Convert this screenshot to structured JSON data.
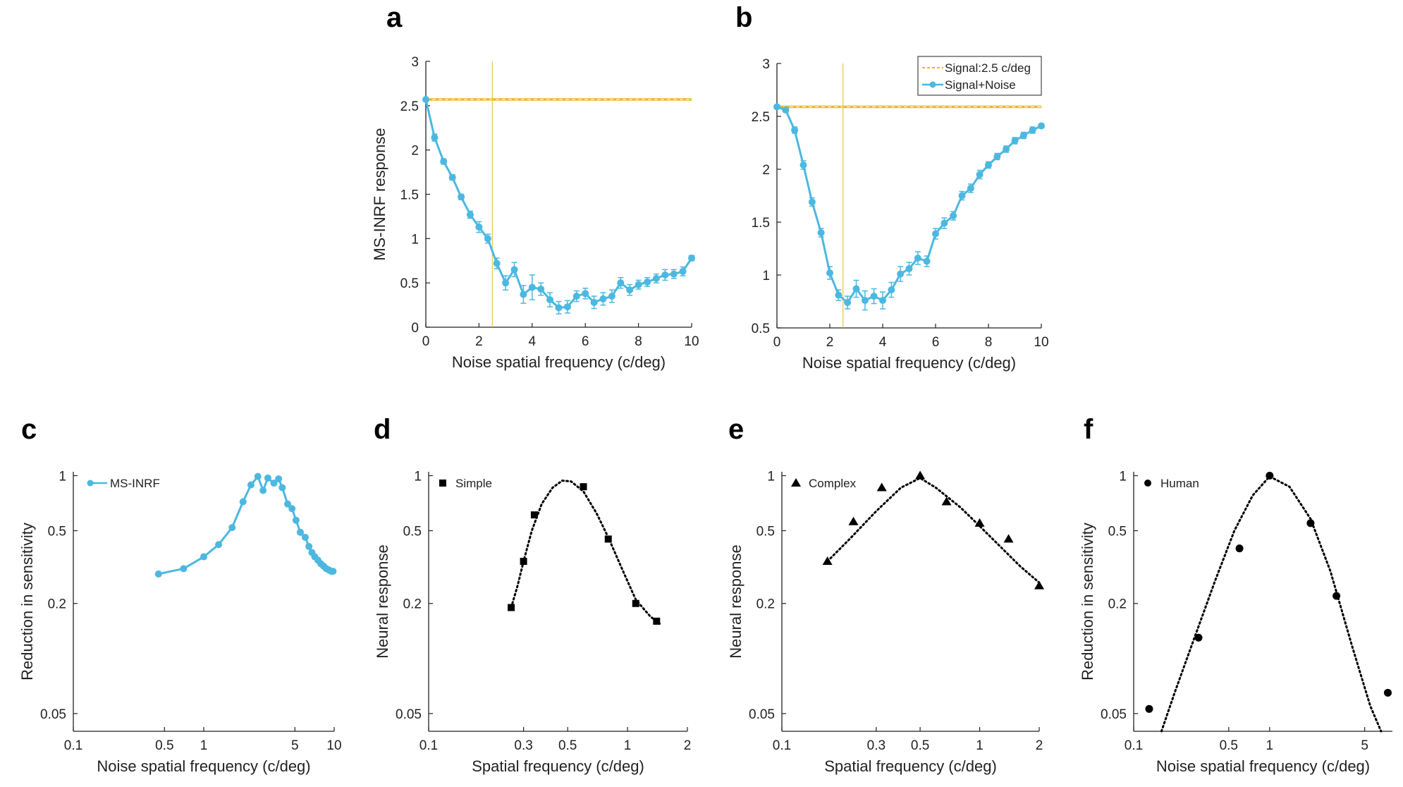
{
  "figure": {
    "panels": [
      "a",
      "b",
      "c",
      "d",
      "e",
      "f"
    ]
  },
  "colors": {
    "model": "#4cb8e0",
    "signal": "#e8b923",
    "marker": "#000000",
    "axis": "#222222"
  },
  "chart_data": [
    {
      "panel": "a",
      "type": "line",
      "xlabel": "Noise spatial frequency (c/deg)",
      "ylabel": "MS-INRF response",
      "xlim": [
        0,
        10
      ],
      "ylim": [
        0,
        3
      ],
      "xticks": [
        0,
        2,
        4,
        6,
        8,
        10
      ],
      "xtick_labels": [
        "0",
        "2",
        "4",
        "6",
        "8",
        "10"
      ],
      "yticks": [
        0,
        0.5,
        1,
        1.5,
        2,
        2.5,
        3
      ],
      "ytick_labels": [
        "0",
        "0.5",
        "1",
        "1.5",
        "2",
        "2.5",
        "3"
      ],
      "signal_level": 2.57,
      "signal_frequency": 2.5,
      "series": [
        {
          "name": "Signal+Noise",
          "x": [
            0,
            0.33,
            0.67,
            1.0,
            1.33,
            1.67,
            2.0,
            2.33,
            2.67,
            3.0,
            3.33,
            3.67,
            4.0,
            4.33,
            4.67,
            5.0,
            5.33,
            5.67,
            6.0,
            6.33,
            6.67,
            7.0,
            7.33,
            7.67,
            8.0,
            8.33,
            8.67,
            9.0,
            9.33,
            9.67,
            10.0
          ],
          "values": [
            2.57,
            2.14,
            1.87,
            1.69,
            1.47,
            1.27,
            1.13,
            1.0,
            0.72,
            0.5,
            0.65,
            0.37,
            0.45,
            0.43,
            0.31,
            0.22,
            0.23,
            0.35,
            0.38,
            0.28,
            0.32,
            0.35,
            0.5,
            0.42,
            0.48,
            0.51,
            0.55,
            0.59,
            0.6,
            0.63,
            0.78
          ],
          "errors": [
            0,
            0.04,
            0.03,
            0.03,
            0.03,
            0.04,
            0.06,
            0.05,
            0.06,
            0.08,
            0.08,
            0.1,
            0.14,
            0.07,
            0.08,
            0.07,
            0.07,
            0.06,
            0.06,
            0.07,
            0.07,
            0.07,
            0.06,
            0.06,
            0.05,
            0.05,
            0.05,
            0.06,
            0.05,
            0.05,
            0.03
          ]
        }
      ]
    },
    {
      "panel": "b",
      "type": "line",
      "xlabel": "Noise spatial frequency (c/deg)",
      "ylabel": "",
      "xlim": [
        0,
        10
      ],
      "ylim": [
        0.5,
        3
      ],
      "xticks": [
        0,
        2,
        4,
        6,
        8,
        10
      ],
      "xtick_labels": [
        "0",
        "2",
        "4",
        "6",
        "8",
        "10"
      ],
      "yticks": [
        0.5,
        1,
        1.5,
        2,
        2.5,
        3
      ],
      "ytick_labels": [
        "0.5",
        "1",
        "1.5",
        "2",
        "2.5",
        "3"
      ],
      "signal_level": 2.59,
      "signal_frequency": 2.5,
      "legend": [
        "Signal:2.5 c/deg",
        "Signal+Noise"
      ],
      "series": [
        {
          "name": "Signal+Noise",
          "x": [
            0,
            0.33,
            0.67,
            1.0,
            1.33,
            1.67,
            2.0,
            2.33,
            2.67,
            3.0,
            3.33,
            3.67,
            4.0,
            4.33,
            4.67,
            5.0,
            5.33,
            5.67,
            6.0,
            6.33,
            6.67,
            7.0,
            7.33,
            7.67,
            8.0,
            8.33,
            8.67,
            9.0,
            9.33,
            9.67,
            10.0
          ],
          "values": [
            2.59,
            2.56,
            2.37,
            2.04,
            1.69,
            1.4,
            1.02,
            0.81,
            0.74,
            0.87,
            0.76,
            0.8,
            0.76,
            0.86,
            1.01,
            1.06,
            1.16,
            1.13,
            1.39,
            1.49,
            1.56,
            1.75,
            1.82,
            1.95,
            2.04,
            2.12,
            2.19,
            2.27,
            2.32,
            2.37,
            2.41
          ],
          "errors": [
            0,
            0.02,
            0.03,
            0.04,
            0.04,
            0.04,
            0.06,
            0.05,
            0.06,
            0.08,
            0.09,
            0.07,
            0.08,
            0.07,
            0.07,
            0.06,
            0.06,
            0.05,
            0.05,
            0.05,
            0.04,
            0.04,
            0.04,
            0.04,
            0.03,
            0.03,
            0.03,
            0.03,
            0.03,
            0.03,
            0.02
          ]
        }
      ]
    },
    {
      "panel": "c",
      "type": "line",
      "xscale": "log",
      "yscale": "log",
      "xlabel": "Noise spatial frequency (c/deg)",
      "ylabel": "Reduction in sensitivity",
      "xlim": [
        0.1,
        10
      ],
      "ylim": [
        0.04,
        1.05
      ],
      "xticks": [
        0.1,
        0.5,
        1,
        5,
        10
      ],
      "xtick_labels": [
        "0.1",
        "0.5",
        "1",
        "5",
        "10"
      ],
      "yticks": [
        0.05,
        0.2,
        0.5,
        1
      ],
      "ytick_labels": [
        "0.05",
        "0.2",
        "0.5",
        "1"
      ],
      "legend": [
        "MS-INRF"
      ],
      "series": [
        {
          "name": "MS-INRF",
          "x": [
            0.45,
            0.7,
            1.0,
            1.3,
            1.65,
            2.0,
            2.3,
            2.6,
            2.85,
            3.1,
            3.45,
            3.75,
            4.0,
            4.4,
            4.75,
            5.1,
            5.5,
            6.0,
            6.4,
            6.75,
            7.1,
            7.5,
            7.9,
            8.3,
            8.7,
            9.1,
            9.5,
            9.8
          ],
          "values": [
            0.29,
            0.31,
            0.36,
            0.42,
            0.52,
            0.72,
            0.89,
            0.99,
            0.83,
            0.97,
            0.91,
            0.96,
            0.86,
            0.7,
            0.66,
            0.57,
            0.49,
            0.46,
            0.41,
            0.38,
            0.36,
            0.345,
            0.33,
            0.32,
            0.31,
            0.305,
            0.3,
            0.3
          ]
        }
      ]
    },
    {
      "panel": "d",
      "type": "scatter",
      "xscale": "log",
      "yscale": "log",
      "xlabel": "Spatial frequency (c/deg)",
      "ylabel": "Neural response",
      "xlim": [
        0.1,
        2
      ],
      "ylim": [
        0.04,
        1.05
      ],
      "xticks": [
        0.1,
        0.3,
        0.5,
        1,
        2
      ],
      "xtick_labels": [
        "0.1",
        "0.3",
        "0.5",
        "1",
        "2"
      ],
      "yticks": [
        0.05,
        0.2,
        0.5,
        1
      ],
      "ytick_labels": [
        "0.05",
        "0.2",
        "0.5",
        "1"
      ],
      "legend": [
        "Simple"
      ],
      "series": [
        {
          "name": "Simple",
          "marker": "square",
          "x": [
            0.26,
            0.3,
            0.34,
            0.6,
            0.8,
            1.1,
            1.4
          ],
          "values": [
            0.19,
            0.34,
            0.61,
            0.87,
            0.45,
            0.2,
            0.16
          ]
        }
      ],
      "fit": {
        "x": [
          0.26,
          0.28,
          0.3,
          0.33,
          0.37,
          0.42,
          0.47,
          0.52,
          0.6,
          0.7,
          0.8,
          0.95,
          1.1,
          1.3,
          1.45
        ],
        "values": [
          0.19,
          0.25,
          0.34,
          0.5,
          0.7,
          0.86,
          0.94,
          0.93,
          0.82,
          0.62,
          0.46,
          0.3,
          0.21,
          0.17,
          0.155
        ]
      }
    },
    {
      "panel": "e",
      "type": "scatter",
      "xscale": "log",
      "yscale": "log",
      "xlabel": "Spatial frequency (c/deg)",
      "ylabel": "Neural response",
      "xlim": [
        0.1,
        2
      ],
      "ylim": [
        0.04,
        1.05
      ],
      "xticks": [
        0.1,
        0.3,
        0.5,
        1,
        2
      ],
      "xtick_labels": [
        "0.1",
        "0.3",
        "0.5",
        "1",
        "2"
      ],
      "yticks": [
        0.05,
        0.2,
        0.5,
        1
      ],
      "ytick_labels": [
        "0.05",
        "0.2",
        "0.5",
        "1"
      ],
      "legend": [
        "Complex"
      ],
      "series": [
        {
          "name": "Complex",
          "marker": "triangle",
          "x": [
            0.17,
            0.23,
            0.32,
            0.5,
            0.68,
            1.0,
            1.4,
            2.0
          ],
          "values": [
            0.34,
            0.56,
            0.86,
            1.0,
            0.72,
            0.55,
            0.45,
            0.25
          ]
        }
      ],
      "fit": {
        "x": [
          0.17,
          0.22,
          0.3,
          0.4,
          0.5,
          0.6,
          0.8,
          1.0,
          1.3,
          1.6,
          2.0
        ],
        "values": [
          0.34,
          0.45,
          0.64,
          0.86,
          0.97,
          0.86,
          0.67,
          0.53,
          0.4,
          0.32,
          0.26
        ]
      }
    },
    {
      "panel": "f",
      "type": "scatter",
      "xscale": "log",
      "yscale": "log",
      "xlabel": "Noise spatial frequency (c/deg)",
      "ylabel": "Reduction in sensitivity",
      "xlim": [
        0.1,
        8
      ],
      "ylim": [
        0.04,
        1.05
      ],
      "xticks": [
        0.1,
        0.5,
        1,
        5
      ],
      "xtick_labels": [
        "0.1",
        "0.5",
        "1",
        "5"
      ],
      "yticks": [
        0.05,
        0.2,
        0.5,
        1
      ],
      "ytick_labels": [
        "0.05",
        "0.2",
        "0.5",
        "1"
      ],
      "legend": [
        "Human"
      ],
      "series": [
        {
          "name": "Human",
          "marker": "circle",
          "x": [
            0.13,
            0.3,
            0.6,
            1.0,
            2.0,
            3.1,
            7.4
          ],
          "values": [
            0.053,
            0.13,
            0.4,
            1.0,
            0.55,
            0.22,
            0.065
          ]
        }
      ],
      "fit": {
        "x": [
          0.16,
          0.2,
          0.28,
          0.4,
          0.55,
          0.75,
          1.0,
          1.4,
          2.0,
          2.8,
          4.0,
          5.5,
          6.6
        ],
        "values": [
          0.04,
          0.065,
          0.13,
          0.27,
          0.5,
          0.78,
          0.99,
          0.87,
          0.58,
          0.3,
          0.12,
          0.055,
          0.04
        ]
      }
    }
  ]
}
